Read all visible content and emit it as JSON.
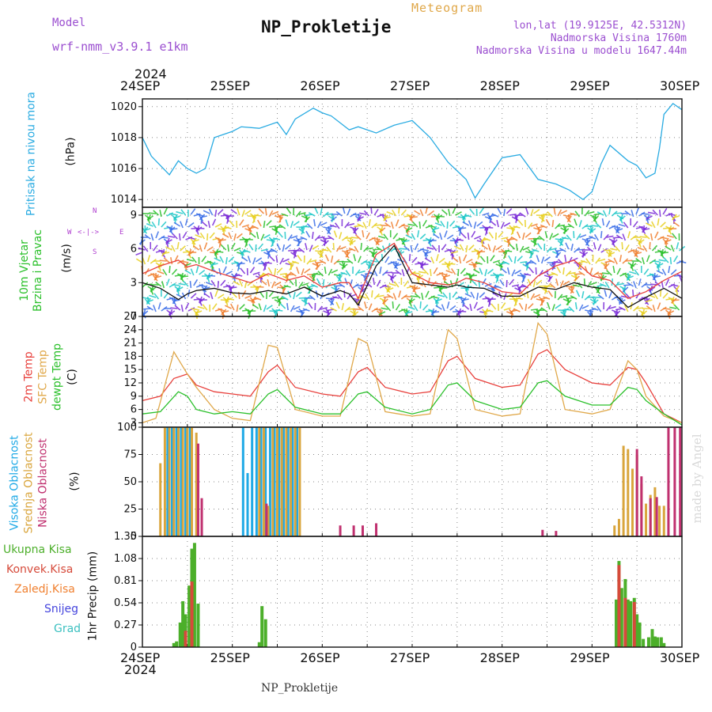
{
  "header": {
    "model_label": "Model",
    "model_name": "wrf-nmm_v3.9.1 e1km",
    "product": "Meteogram",
    "title": "NP_Prokletije",
    "lonlat": "lon,lat (19.9125E, 42.5312N)",
    "elevation": "Nadmorska Visina 1760m",
    "model_elevation": "Nadmorska Visina u modelu 1647.44m",
    "credit": "made by Angel"
  },
  "time_axis": {
    "year": "2024",
    "labels": [
      "24SEP",
      "25SEP",
      "26SEP",
      "27SEP",
      "28SEP",
      "29SEP",
      "30SEP"
    ],
    "bottom_station": "NP_Prokletije"
  },
  "panels": {
    "pressure": {
      "label": "Pritisak na nivou mora",
      "unit": "(hPa)"
    },
    "wind": {
      "label_line1": "10m Vjetar",
      "label_line2": "Brzina i Pravac",
      "unit": "(m/s)",
      "compass_n": "N",
      "compass_s": "S",
      "compass_w": "W",
      "compass_e": "E",
      "compass_arrows": "<-|->"
    },
    "temp": {
      "label_2m": "2m Temp",
      "label_sfc": "SFC Temp",
      "label_dewpt": "dewpt Temp",
      "unit": "(C)"
    },
    "cloud": {
      "label_high": "Visoka Oblacnost",
      "label_mid": "Srednja Oblacnost",
      "label_low": "Niska Oblacnost",
      "unit": "(%)"
    },
    "precip": {
      "legend_total": "Ukupna Kisa",
      "legend_conv": "Konvek.Kisa",
      "legend_frozen": "Zaledj.Kisa",
      "legend_snow": "Snijeg",
      "legend_hail": "Grad",
      "unit_label": "1hr Precip (mm)"
    }
  },
  "colors": {
    "pressure": "#29abe2",
    "temp2m": "#e8403c",
    "sfc": "#e0a84a",
    "dewpt": "#2bc02b",
    "cloud_high": "#1fa9e6",
    "cloud_mid": "#d9a53c",
    "cloud_low": "#c0306f",
    "precip_total": "#4caf2a",
    "precip_conv": "#d64a3a",
    "precip_frozen": "#f08030",
    "snow": "#4444dd",
    "hail": "#3cc0c0",
    "wind_speed": "#111111",
    "wind_gust": "#e8403c"
  },
  "chart_data": [
    {
      "type": "line",
      "name": "pressure",
      "x_unit": "days from 24SEP 00UTC",
      "ylim": [
        1013.5,
        1020.5
      ],
      "yticks": [
        1014,
        1016,
        1018,
        1020
      ],
      "series": [
        {
          "x": [
            0,
            0.1,
            0.2,
            0.3,
            0.4,
            0.5,
            0.6,
            0.7,
            0.8,
            1.0,
            1.1,
            1.3,
            1.5,
            1.6,
            1.7,
            1.9,
            2.0,
            2.1,
            2.3,
            2.4,
            2.6,
            2.8,
            3.0,
            3.2,
            3.4,
            3.6,
            3.7,
            3.8,
            4.0,
            4.2,
            4.4,
            4.6,
            4.75,
            4.9,
            5.0,
            5.1,
            5.2,
            5.4,
            5.5,
            5.6,
            5.7,
            5.75,
            5.8,
            5.9,
            6.0
          ],
          "y": [
            1018.0,
            1016.8,
            1016.2,
            1015.6,
            1016.5,
            1016.0,
            1015.7,
            1016.0,
            1018.0,
            1018.4,
            1018.7,
            1018.6,
            1019.0,
            1018.2,
            1019.2,
            1019.9,
            1019.6,
            1019.4,
            1018.5,
            1018.7,
            1018.3,
            1018.8,
            1019.1,
            1018.0,
            1016.4,
            1015.3,
            1014.1,
            1015.0,
            1016.7,
            1016.9,
            1015.3,
            1015.0,
            1014.6,
            1014.0,
            1014.5,
            1016.3,
            1017.5,
            1016.5,
            1016.2,
            1015.4,
            1015.7,
            1017.3,
            1019.5,
            1020.2,
            1019.8
          ]
        }
      ]
    },
    {
      "type": "line",
      "name": "wind",
      "x_unit": "days from 24SEP 00UTC",
      "ylim": [
        0,
        9.7
      ],
      "yticks": [
        0,
        3,
        6,
        9
      ],
      "series": [
        {
          "name": "speed",
          "x": [
            0,
            0.2,
            0.4,
            0.5,
            0.6,
            0.8,
            1.0,
            1.2,
            1.4,
            1.6,
            1.8,
            2.0,
            2.2,
            2.3,
            2.4,
            2.6,
            2.8,
            3.0,
            3.2,
            3.4,
            3.5,
            3.6,
            3.8,
            4.0,
            4.2,
            4.4,
            4.6,
            4.8,
            5.0,
            5.2,
            5.4,
            5.6,
            5.8,
            6.0
          ],
          "y": [
            3.0,
            2.5,
            1.5,
            2.0,
            2.3,
            2.5,
            2.1,
            2.0,
            2.3,
            2.0,
            2.6,
            1.8,
            2.3,
            2.0,
            1.0,
            4.5,
            6.3,
            3.0,
            2.8,
            2.6,
            2.8,
            2.6,
            2.5,
            1.8,
            1.8,
            2.6,
            2.4,
            3.0,
            2.6,
            2.4,
            0.8,
            1.7,
            2.5,
            1.6
          ]
        },
        {
          "name": "gust",
          "x": [
            0,
            0.2,
            0.4,
            0.5,
            0.6,
            0.8,
            1.0,
            1.2,
            1.4,
            1.6,
            1.8,
            2.0,
            2.2,
            2.3,
            2.4,
            2.6,
            2.8,
            3.0,
            3.2,
            3.4,
            3.5,
            3.6,
            3.8,
            4.0,
            4.2,
            4.4,
            4.6,
            4.8,
            5.0,
            5.2,
            5.4,
            5.6,
            5.8,
            6.0
          ],
          "y": [
            3.8,
            4.5,
            5.0,
            4.4,
            4.6,
            4.0,
            3.5,
            3.0,
            3.8,
            3.2,
            3.6,
            2.6,
            3.0,
            3.0,
            1.6,
            5.5,
            6.5,
            3.8,
            3.0,
            2.8,
            3.0,
            3.4,
            3.0,
            2.2,
            2.0,
            3.6,
            4.5,
            5.0,
            3.6,
            3.2,
            1.6,
            2.2,
            3.2,
            4.0
          ]
        }
      ]
    },
    {
      "type": "line",
      "name": "temperature",
      "x_unit": "days from 24SEP 00UTC",
      "ylim": [
        2,
        27
      ],
      "yticks": [
        3,
        6,
        9,
        12,
        15,
        18,
        21,
        24,
        27
      ],
      "series": [
        {
          "name": "2m",
          "x": [
            0,
            0.2,
            0.35,
            0.5,
            0.6,
            0.8,
            1.0,
            1.2,
            1.4,
            1.5,
            1.7,
            2.0,
            2.2,
            2.4,
            2.5,
            2.7,
            3.0,
            3.2,
            3.4,
            3.5,
            3.7,
            4.0,
            4.2,
            4.4,
            4.5,
            4.7,
            5.0,
            5.2,
            5.4,
            5.5,
            5.6,
            5.8,
            6.0
          ],
          "y": [
            8.0,
            9.0,
            13.0,
            14.0,
            11.5,
            10.0,
            9.5,
            9.0,
            14.5,
            16.0,
            11.0,
            9.5,
            9.0,
            14.5,
            15.5,
            11.0,
            9.5,
            10.0,
            17.0,
            18.0,
            13.0,
            11.0,
            11.5,
            18.5,
            19.5,
            15.0,
            12.0,
            11.5,
            15.5,
            15.0,
            12.0,
            5.0,
            3.0
          ]
        },
        {
          "name": "sfc",
          "x": [
            0,
            0.15,
            0.35,
            0.5,
            0.6,
            0.8,
            1.0,
            1.2,
            1.4,
            1.5,
            1.7,
            2.0,
            2.2,
            2.4,
            2.5,
            2.7,
            3.0,
            3.2,
            3.4,
            3.5,
            3.7,
            4.0,
            4.2,
            4.4,
            4.5,
            4.7,
            5.0,
            5.2,
            5.4,
            5.5,
            5.6,
            5.8,
            6.0
          ],
          "y": [
            3.0,
            4.0,
            19.0,
            14.0,
            11.0,
            6.0,
            4.0,
            3.5,
            20.5,
            20.0,
            6.0,
            4.5,
            4.5,
            22.0,
            21.0,
            5.5,
            4.5,
            5.0,
            24.0,
            22.0,
            6.0,
            4.5,
            5.0,
            25.5,
            23.0,
            6.0,
            5.0,
            6.0,
            17.0,
            15.0,
            9.0,
            4.5,
            3.0
          ]
        },
        {
          "name": "dewpt",
          "x": [
            0,
            0.2,
            0.4,
            0.5,
            0.6,
            0.8,
            1.0,
            1.2,
            1.4,
            1.5,
            1.7,
            2.0,
            2.2,
            2.4,
            2.5,
            2.7,
            3.0,
            3.2,
            3.4,
            3.5,
            3.7,
            4.0,
            4.2,
            4.4,
            4.5,
            4.7,
            5.0,
            5.2,
            5.4,
            5.5,
            5.6,
            5.8,
            6.0
          ],
          "y": [
            5.0,
            5.5,
            10.0,
            9.0,
            6.0,
            5.0,
            5.5,
            5.0,
            9.5,
            10.5,
            6.5,
            5.0,
            5.0,
            9.5,
            10.0,
            6.5,
            5.0,
            6.0,
            11.5,
            12.0,
            8.0,
            6.0,
            6.5,
            12.0,
            12.5,
            9.0,
            7.0,
            7.0,
            11.0,
            10.5,
            8.0,
            5.0,
            2.5
          ]
        }
      ]
    },
    {
      "type": "bar",
      "name": "cloud_cover",
      "x_unit": "days from 24SEP 00UTC",
      "ylim": [
        0,
        100
      ],
      "yticks": [
        0,
        25,
        50,
        75,
        100
      ],
      "series": [
        {
          "name": "high",
          "x": [
            0.28,
            0.33,
            0.38,
            0.43,
            0.48,
            0.53,
            1.12,
            1.17,
            1.22,
            1.27,
            1.32,
            1.37,
            1.42,
            1.47,
            1.52,
            1.57,
            1.62,
            1.67,
            1.72
          ],
          "y": [
            100,
            100,
            100,
            100,
            100,
            100,
            100,
            58,
            100,
            100,
            100,
            100,
            100,
            100,
            100,
            100,
            100,
            100,
            100
          ]
        },
        {
          "name": "mid",
          "x": [
            0.2,
            0.25,
            0.3,
            0.35,
            0.4,
            0.45,
            0.5,
            0.55,
            0.6,
            1.3,
            1.35,
            1.4,
            1.45,
            1.5,
            1.55,
            1.6,
            1.65,
            1.7,
            1.75,
            5.25,
            5.3,
            5.35,
            5.4,
            5.45,
            5.5,
            5.55,
            5.6,
            5.65,
            5.7,
            5.75,
            5.8
          ],
          "y": [
            67,
            100,
            100,
            100,
            100,
            100,
            100,
            100,
            95,
            100,
            100,
            28,
            100,
            100,
            100,
            100,
            100,
            100,
            100,
            10,
            16,
            83,
            80,
            62,
            75,
            48,
            30,
            38,
            45,
            28,
            28
          ]
        },
        {
          "name": "low",
          "x": [
            0.62,
            0.66,
            1.38,
            2.2,
            2.35,
            2.45,
            2.6,
            4.45,
            4.6,
            5.5,
            5.55,
            5.65,
            5.72,
            5.85,
            5.92,
            5.98
          ],
          "y": [
            85,
            35,
            30,
            10,
            10,
            10,
            12,
            6,
            5,
            80,
            55,
            35,
            36,
            100,
            100,
            100
          ]
        }
      ]
    },
    {
      "type": "bar",
      "name": "precipitation",
      "x_unit": "days from 24SEP 00UTC",
      "ylim": [
        0,
        1.35
      ],
      "yticks": [
        0,
        0.27,
        0.54,
        0.81,
        1.08,
        1.35
      ],
      "series": [
        {
          "name": "total",
          "x": [
            0.35,
            0.38,
            0.42,
            0.45,
            0.48,
            0.52,
            0.55,
            0.58,
            0.62,
            1.3,
            1.33,
            1.37,
            5.27,
            5.3,
            5.33,
            5.37,
            5.4,
            5.43,
            5.47,
            5.5,
            5.53,
            5.57,
            5.63,
            5.67,
            5.7,
            5.73,
            5.77,
            5.8
          ],
          "y": [
            0.05,
            0.07,
            0.3,
            0.56,
            0.4,
            0.75,
            1.2,
            1.27,
            0.53,
            0.06,
            0.5,
            0.34,
            0.58,
            1.05,
            0.72,
            0.83,
            0.58,
            0.56,
            0.6,
            0.4,
            0.3,
            0.1,
            0.12,
            0.22,
            0.13,
            0.12,
            0.12,
            0.05
          ]
        },
        {
          "name": "conv",
          "x": [
            0.48,
            0.55,
            5.3,
            5.37,
            5.47
          ],
          "y": [
            0.2,
            0.8,
            1.0,
            0.6,
            0.55
          ]
        }
      ]
    }
  ]
}
